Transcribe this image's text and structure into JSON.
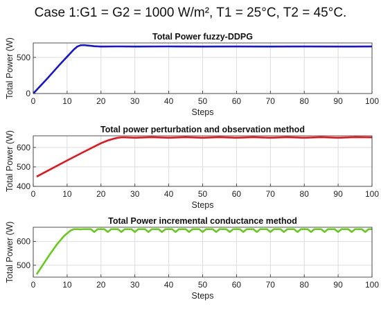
{
  "figure": {
    "suptitle": "Case 1:G1 = G2 = 1000 W/m², T1 = 25°C, T2 = 45°C."
  },
  "chart_data": [
    {
      "type": "line",
      "title": "Total Power fuzzy-DDPG",
      "xlabel": "Steps",
      "ylabel": "Total Power (W)",
      "xlim": [
        0,
        100
      ],
      "ylim": [
        0,
        700
      ],
      "xticks": [
        0,
        10,
        20,
        30,
        40,
        50,
        60,
        70,
        80,
        90,
        100
      ],
      "yticks": [
        0,
        500
      ],
      "grid": true,
      "series": [
        {
          "color": "#1515d6",
          "x": [
            0,
            2,
            4,
            6,
            8,
            10,
            12,
            13,
            14,
            15,
            16,
            18,
            20,
            25,
            30,
            40,
            50,
            60,
            70,
            80,
            90,
            100
          ],
          "y": [
            0,
            100,
            200,
            305,
            410,
            510,
            610,
            650,
            668,
            670,
            665,
            655,
            650,
            652,
            650,
            652,
            650,
            651,
            650,
            651,
            650,
            651
          ]
        }
      ]
    },
    {
      "type": "line",
      "title": "Total power perturbation and observation method",
      "xlabel": "Steps",
      "ylabel": "Total Power (W)",
      "xlim": [
        0,
        100
      ],
      "ylim": [
        400,
        660
      ],
      "xticks": [
        0,
        10,
        20,
        30,
        40,
        50,
        60,
        70,
        80,
        90,
        100
      ],
      "yticks": [
        400,
        500,
        600
      ],
      "grid": true,
      "series": [
        {
          "color": "#e8141a",
          "x": [
            1,
            5,
            10,
            15,
            20,
            22,
            24,
            25,
            26,
            27,
            30,
            35,
            40,
            45,
            50,
            55,
            60,
            65,
            70,
            75,
            80,
            85,
            90,
            95,
            100
          ],
          "y": [
            450,
            487,
            533,
            578,
            622,
            636,
            646,
            650,
            652,
            652,
            650,
            653,
            650,
            653,
            650,
            653,
            650,
            653,
            650,
            653,
            650,
            653,
            650,
            653,
            652
          ]
        }
      ]
    },
    {
      "type": "line",
      "title": "Total Power incremental conductance method",
      "xlabel": "Steps",
      "ylabel": "Total Power (W)",
      "xlim": [
        0,
        100
      ],
      "ylim": [
        450,
        660
      ],
      "xticks": [
        0,
        10,
        20,
        30,
        40,
        50,
        60,
        70,
        80,
        90,
        100
      ],
      "yticks": [
        500,
        600
      ],
      "grid": true,
      "series": [
        {
          "color": "#66cc1a",
          "x": [
            1,
            3,
            5,
            7,
            9,
            11,
            12,
            13,
            14,
            15,
            16,
            17,
            18,
            19,
            20,
            21,
            22,
            23,
            24,
            25,
            26,
            27,
            28,
            29,
            30,
            31,
            32,
            33,
            34,
            35,
            36,
            37,
            38,
            39,
            40,
            41,
            42,
            43,
            44,
            45,
            46,
            47,
            48,
            49,
            50,
            51,
            52,
            53,
            54,
            55,
            56,
            57,
            58,
            59,
            60,
            61,
            62,
            63,
            64,
            65,
            66,
            67,
            68,
            69,
            70,
            71,
            72,
            73,
            74,
            75,
            76,
            77,
            78,
            79,
            80,
            81,
            82,
            83,
            84,
            85,
            86,
            87,
            88,
            89,
            90,
            91,
            92,
            93,
            94,
            95,
            96,
            97,
            98,
            99,
            100
          ],
          "y": [
            462,
            505,
            548,
            588,
            622,
            646,
            652,
            652,
            651,
            652,
            652,
            652,
            640,
            652,
            652,
            652,
            640,
            652,
            652,
            652,
            640,
            652,
            652,
            652,
            640,
            652,
            652,
            652,
            640,
            652,
            652,
            652,
            640,
            652,
            652,
            652,
            640,
            652,
            652,
            652,
            640,
            652,
            652,
            652,
            640,
            652,
            652,
            652,
            640,
            652,
            652,
            652,
            640,
            652,
            652,
            652,
            640,
            652,
            652,
            652,
            640,
            652,
            652,
            652,
            640,
            652,
            652,
            652,
            640,
            652,
            652,
            652,
            640,
            652,
            652,
            652,
            640,
            652,
            652,
            652,
            640,
            652,
            652,
            652,
            640,
            652,
            652,
            652,
            640,
            652,
            652,
            652,
            640,
            652,
            652
          ]
        }
      ]
    }
  ]
}
